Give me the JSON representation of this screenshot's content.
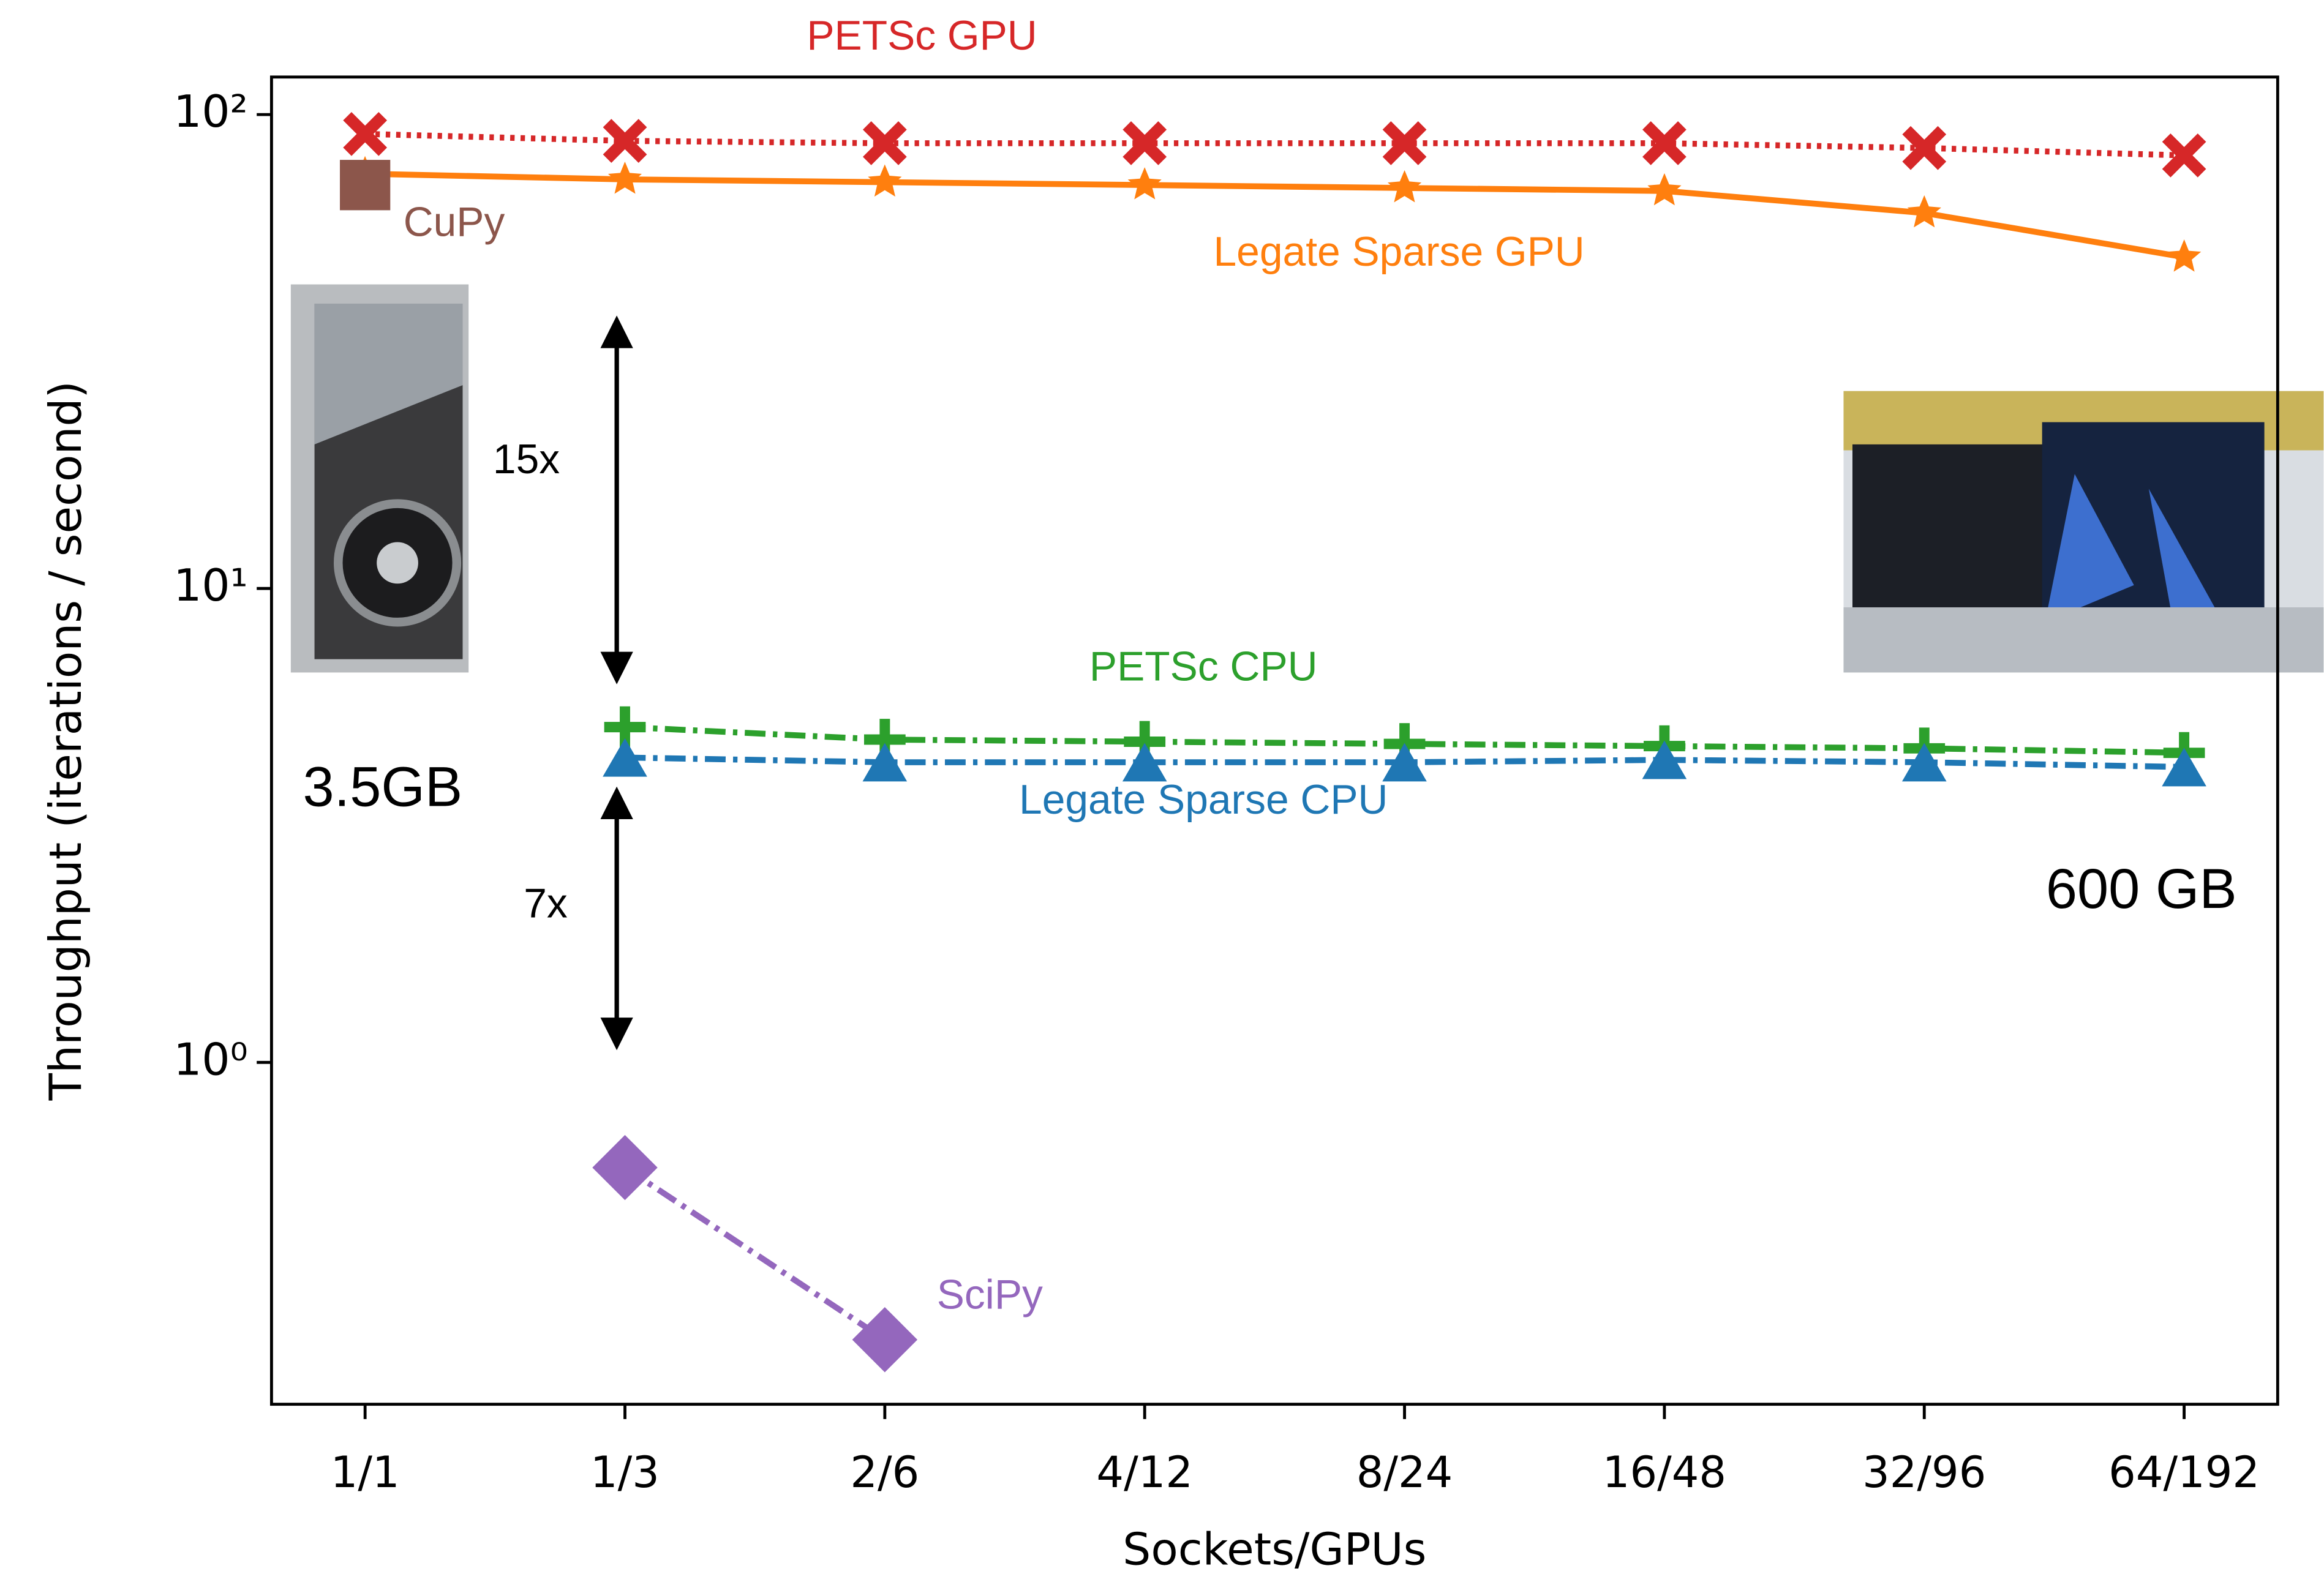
{
  "chart_data": {
    "type": "line",
    "x_label": "Sockets/GPUs",
    "y_label": "Throughput (iterations / second)",
    "categories": [
      "1/1",
      "1/3",
      "2/6",
      "4/12",
      "8/24",
      "16/48",
      "32/96",
      "64/192"
    ],
    "log_y": true,
    "ylim": [
      0.19,
      120
    ],
    "yticks": [
      {
        "value": 1,
        "label": "10⁰"
      },
      {
        "value": 10,
        "label": "10¹"
      },
      {
        "value": 100,
        "label": "10²"
      }
    ],
    "series": [
      {
        "name": "PETSc GPU",
        "color": "#d62728",
        "marker": "x",
        "linestyle": "dotted",
        "values": [
          91,
          88,
          87,
          87,
          87,
          87,
          85,
          82
        ]
      },
      {
        "name": "Legate Sparse GPU",
        "color": "#ff7f0e",
        "marker": "star",
        "linestyle": "solid",
        "values": [
          75,
          73,
          72,
          71,
          70,
          69,
          62,
          50
        ]
      },
      {
        "name": "CuPy",
        "color": "#8c564b",
        "marker": "square",
        "linestyle": "solid",
        "values": [
          71,
          null,
          null,
          null,
          null,
          null,
          null,
          null
        ]
      },
      {
        "name": "PETSc CPU",
        "color": "#2ca02c",
        "marker": "plus",
        "linestyle": "dashdot",
        "values": [
          null,
          5.1,
          4.8,
          4.75,
          4.7,
          4.65,
          4.6,
          4.5
        ]
      },
      {
        "name": "Legate Sparse CPU",
        "color": "#1f77b4",
        "marker": "triangle",
        "linestyle": "dashdot",
        "values": [
          null,
          4.4,
          4.3,
          4.3,
          4.3,
          4.35,
          4.3,
          4.2
        ]
      },
      {
        "name": "SciPy",
        "color": "#9467bd",
        "marker": "diamond",
        "linestyle": "dashdot",
        "values": [
          null,
          0.6,
          0.26,
          null,
          null,
          null,
          null,
          null
        ]
      }
    ],
    "annotations": [
      "15x",
      "7x",
      "3.5GB",
      "600 GB"
    ]
  }
}
